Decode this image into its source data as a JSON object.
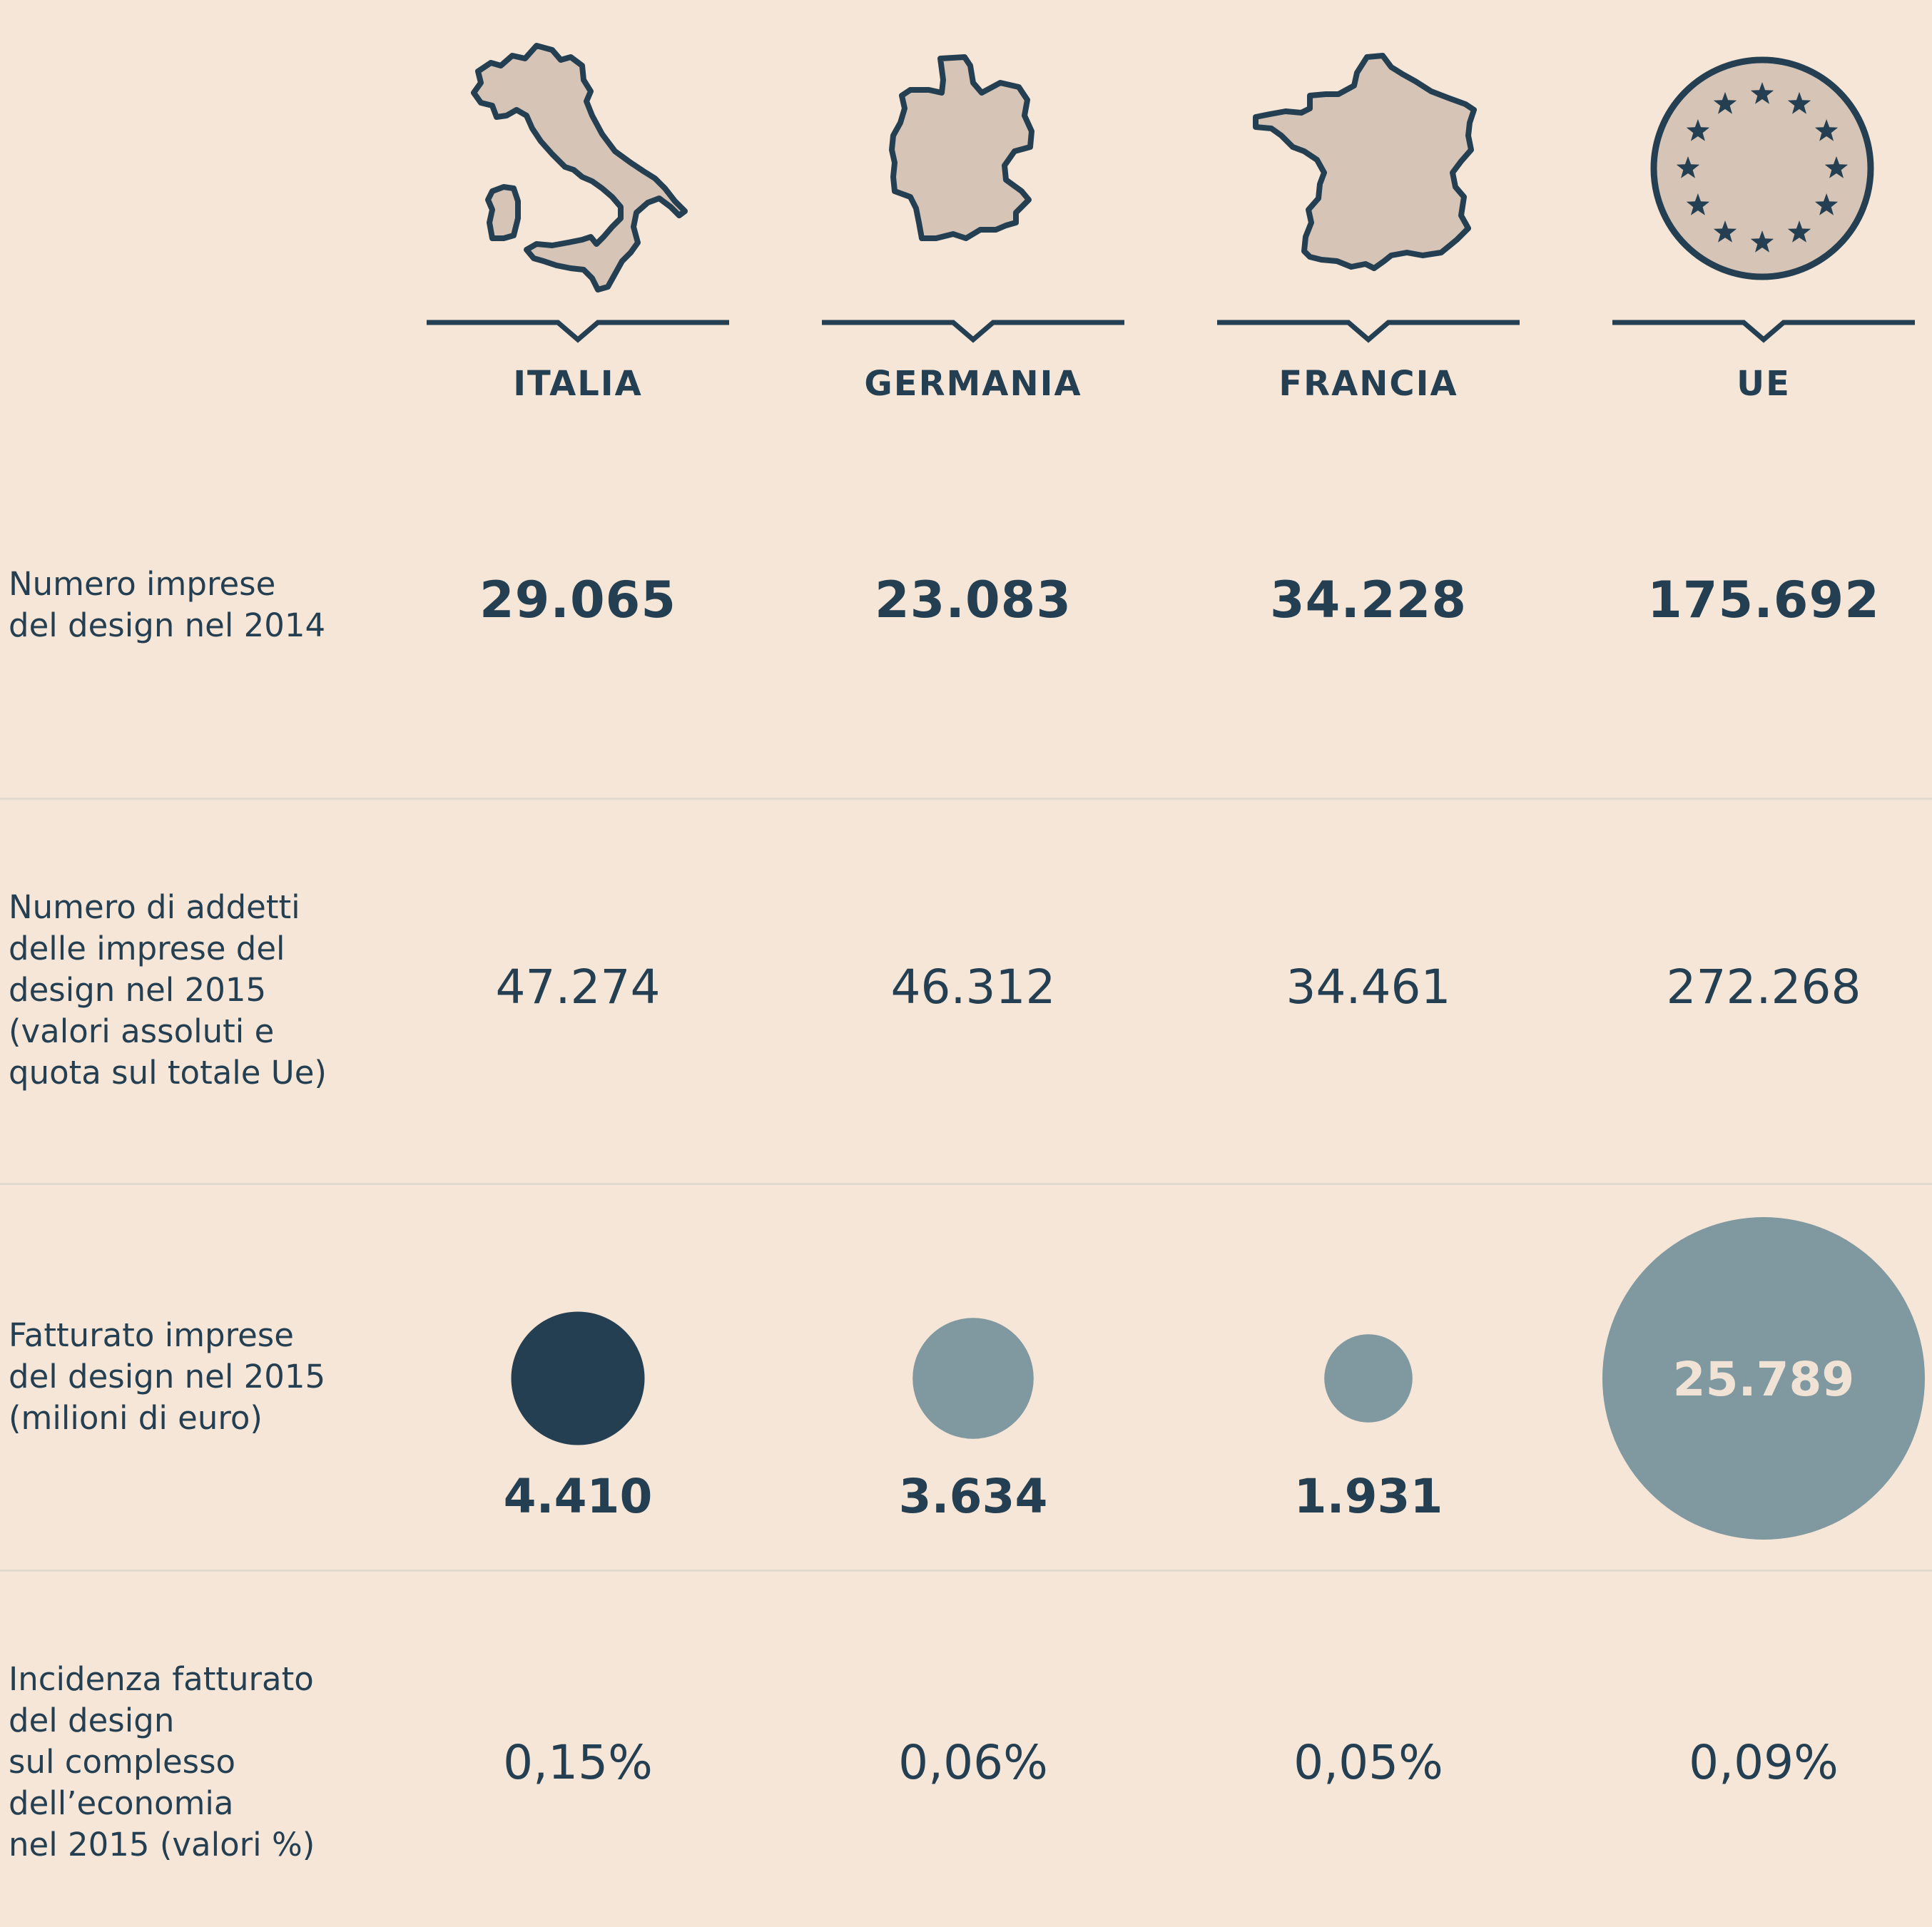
{
  "columns": [
    {
      "key": "italia",
      "label": "ITALIA",
      "icon": "italy-map-icon"
    },
    {
      "key": "germania",
      "label": "GERMANIA",
      "icon": "germany-map-icon"
    },
    {
      "key": "francia",
      "label": "FRANCIA",
      "icon": "france-map-icon"
    },
    {
      "key": "ue",
      "label": "UE",
      "icon": "eu-stars-icon"
    }
  ],
  "rows": [
    {
      "label": "Numero imprese\ndel design nel 2014",
      "values": [
        "29.065",
        "23.083",
        "34.228",
        "175.692"
      ]
    },
    {
      "label": "Numero di addetti\ndelle imprese del\ndesign nel 2015\n(valori assoluti e\nquota sul totale Ue)",
      "values": [
        "47.274",
        "46.312",
        "34.461",
        "272.268"
      ]
    },
    {
      "label": "Fatturato imprese\ndel design nel 2015\n(milioni di euro)",
      "values": [
        "4.410",
        "3.634",
        "1.931",
        "25.789"
      ]
    },
    {
      "label": "Incidenza fatturato\ndel design\nsul complesso\ndell’economia\nnel 2015 (valori %)",
      "values": [
        "0,15%",
        "0,06%",
        "0,05%",
        "0,09%"
      ]
    }
  ],
  "chart_data": {
    "type": "bubble",
    "title": "Fatturato imprese del design nel 2015 (milioni di euro)",
    "categories": [
      "ITALIA",
      "GERMANIA",
      "FRANCIA",
      "UE"
    ],
    "values": [
      4410,
      3634,
      1931,
      25789
    ],
    "value_labels": [
      "4.410",
      "3.634",
      "1.931",
      "25.789"
    ],
    "highlight": "ITALIA"
  },
  "colors": {
    "background": "#f5e6d7",
    "ink": "#253f52",
    "map_fill": "#d6c4b6",
    "bubble_muted": "#80989f",
    "bubble_highlight": "#253f52",
    "separator": "#e2d9cf",
    "bubble_text_on_dark": "#f0e3d5"
  }
}
